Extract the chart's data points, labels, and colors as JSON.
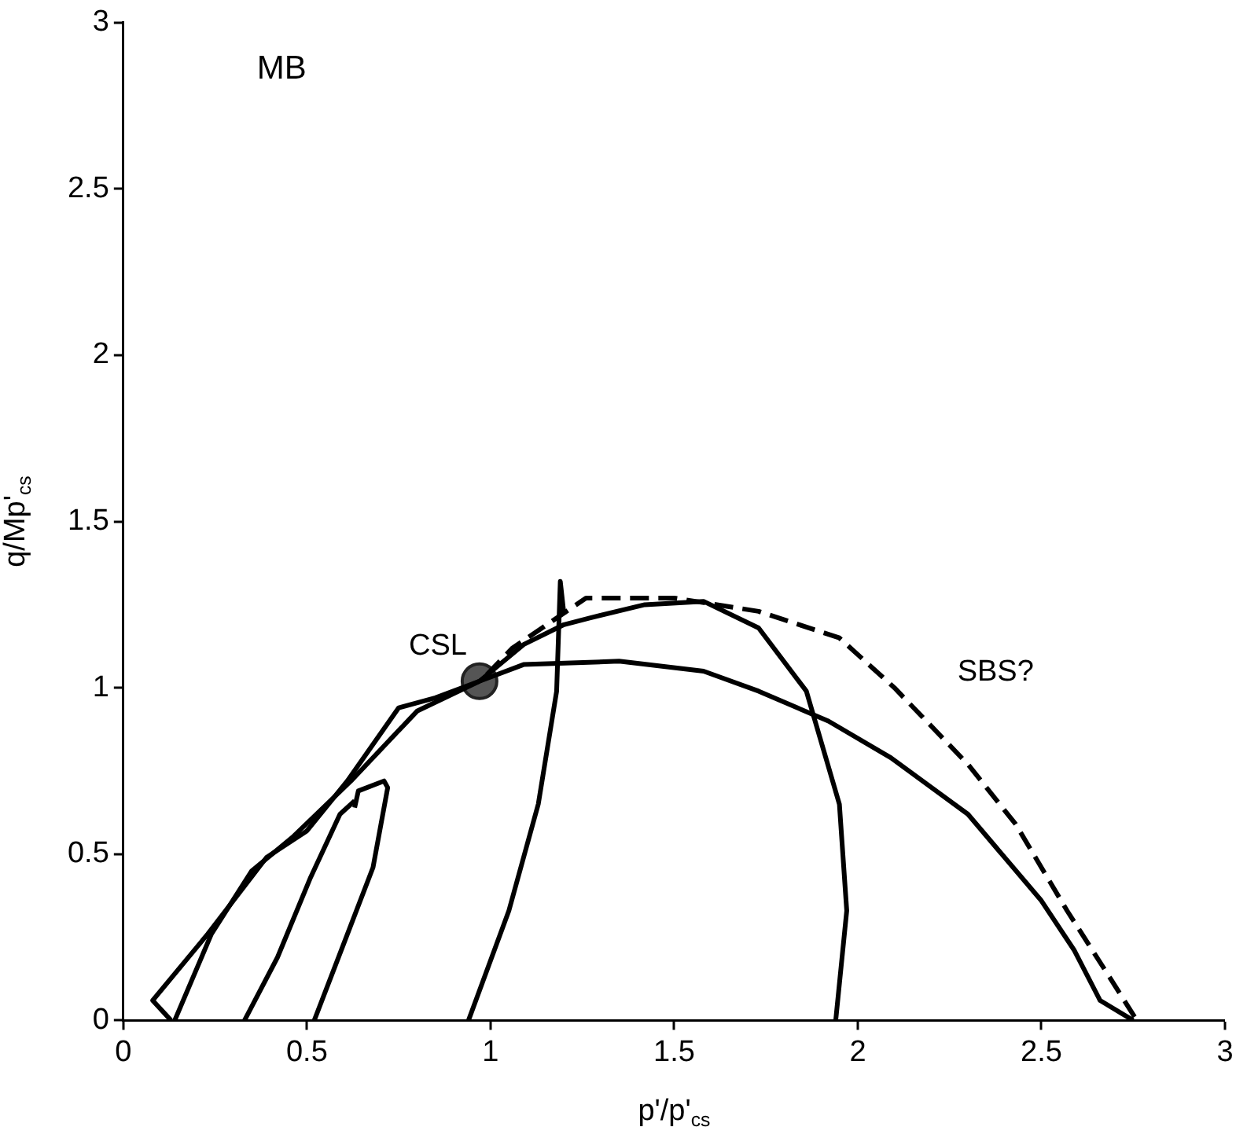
{
  "chart_data": {
    "type": "line",
    "xlabel": "p'/p'$_{cs}$",
    "ylabel": "q/Mp'$_{cs}$",
    "xlim": [
      0,
      3
    ],
    "ylim": [
      0,
      3
    ],
    "xticks": [
      0,
      0.5,
      1,
      1.5,
      2,
      2.5,
      3
    ],
    "yticks": [
      0,
      0.5,
      1,
      1.5,
      2,
      2.5,
      3
    ],
    "grid": false,
    "legend": false,
    "annotations": [
      "MB"
    ],
    "series": [
      {
        "color": "#000000",
        "x": [
          0.13,
          0.08,
          0.23,
          0.39,
          0.5,
          0.61,
          0.75,
          0.85,
          0.97
        ],
        "values": [
          0,
          0.06,
          0.26,
          0.49,
          0.57,
          0.72,
          0.94,
          0.97,
          1.02
        ]
      },
      {
        "color": "#000000",
        "x": [
          0.14,
          0.24,
          0.35,
          0.46,
          0.62,
          0.8,
          0.97,
          1.09,
          1.35,
          1.58,
          1.73,
          1.92,
          2.09,
          2.3,
          2.5,
          2.59,
          2.66,
          2.75
        ],
        "values": [
          0,
          0.26,
          0.45,
          0.55,
          0.72,
          0.93,
          1.02,
          1.07,
          1.08,
          1.05,
          0.99,
          0.9,
          0.79,
          0.62,
          0.36,
          0.21,
          0.06,
          0
        ]
      },
      {
        "color": "#000000",
        "x": [
          0.33,
          0.42,
          0.51,
          0.59,
          0.63
        ],
        "values": [
          0,
          0.19,
          0.43,
          0.62,
          0.66
        ]
      },
      {
        "color": "#000000",
        "x": [
          0.52,
          0.6,
          0.68,
          0.72,
          0.71,
          0.64,
          0.63
        ],
        "values": [
          0,
          0.23,
          0.46,
          0.7,
          0.72,
          0.69,
          0.64
        ]
      },
      {
        "color": "#000000",
        "x": [
          0.94,
          1.05,
          1.13,
          1.18,
          1.19,
          1.2
        ],
        "values": [
          0,
          0.33,
          0.65,
          0.99,
          1.32,
          1.22
        ]
      },
      {
        "color": "#000000",
        "x": [
          0.97,
          1.09,
          1.2,
          1.27,
          1.42,
          1.58,
          1.73,
          1.86,
          1.95,
          1.97,
          1.94
        ],
        "values": [
          1.02,
          1.13,
          1.19,
          1.21,
          1.25,
          1.26,
          1.18,
          0.99,
          0.65,
          0.33,
          0
        ]
      },
      {
        "name": "SBS?",
        "color": "#000000",
        "line_style": "dashed",
        "x": [
          0.99,
          1.06,
          1.26,
          1.5,
          1.73,
          1.95,
          2.1,
          2.3,
          2.43,
          2.57,
          2.68,
          2.76
        ],
        "values": [
          1.04,
          1.12,
          1.27,
          1.27,
          1.23,
          1.15,
          1,
          0.77,
          0.59,
          0.33,
          0.14,
          0
        ]
      },
      {
        "name": "CSL",
        "type": "scatter",
        "marker": "circle",
        "color": "#555555",
        "x": [
          0.97
        ],
        "values": [
          1.02
        ]
      }
    ]
  }
}
